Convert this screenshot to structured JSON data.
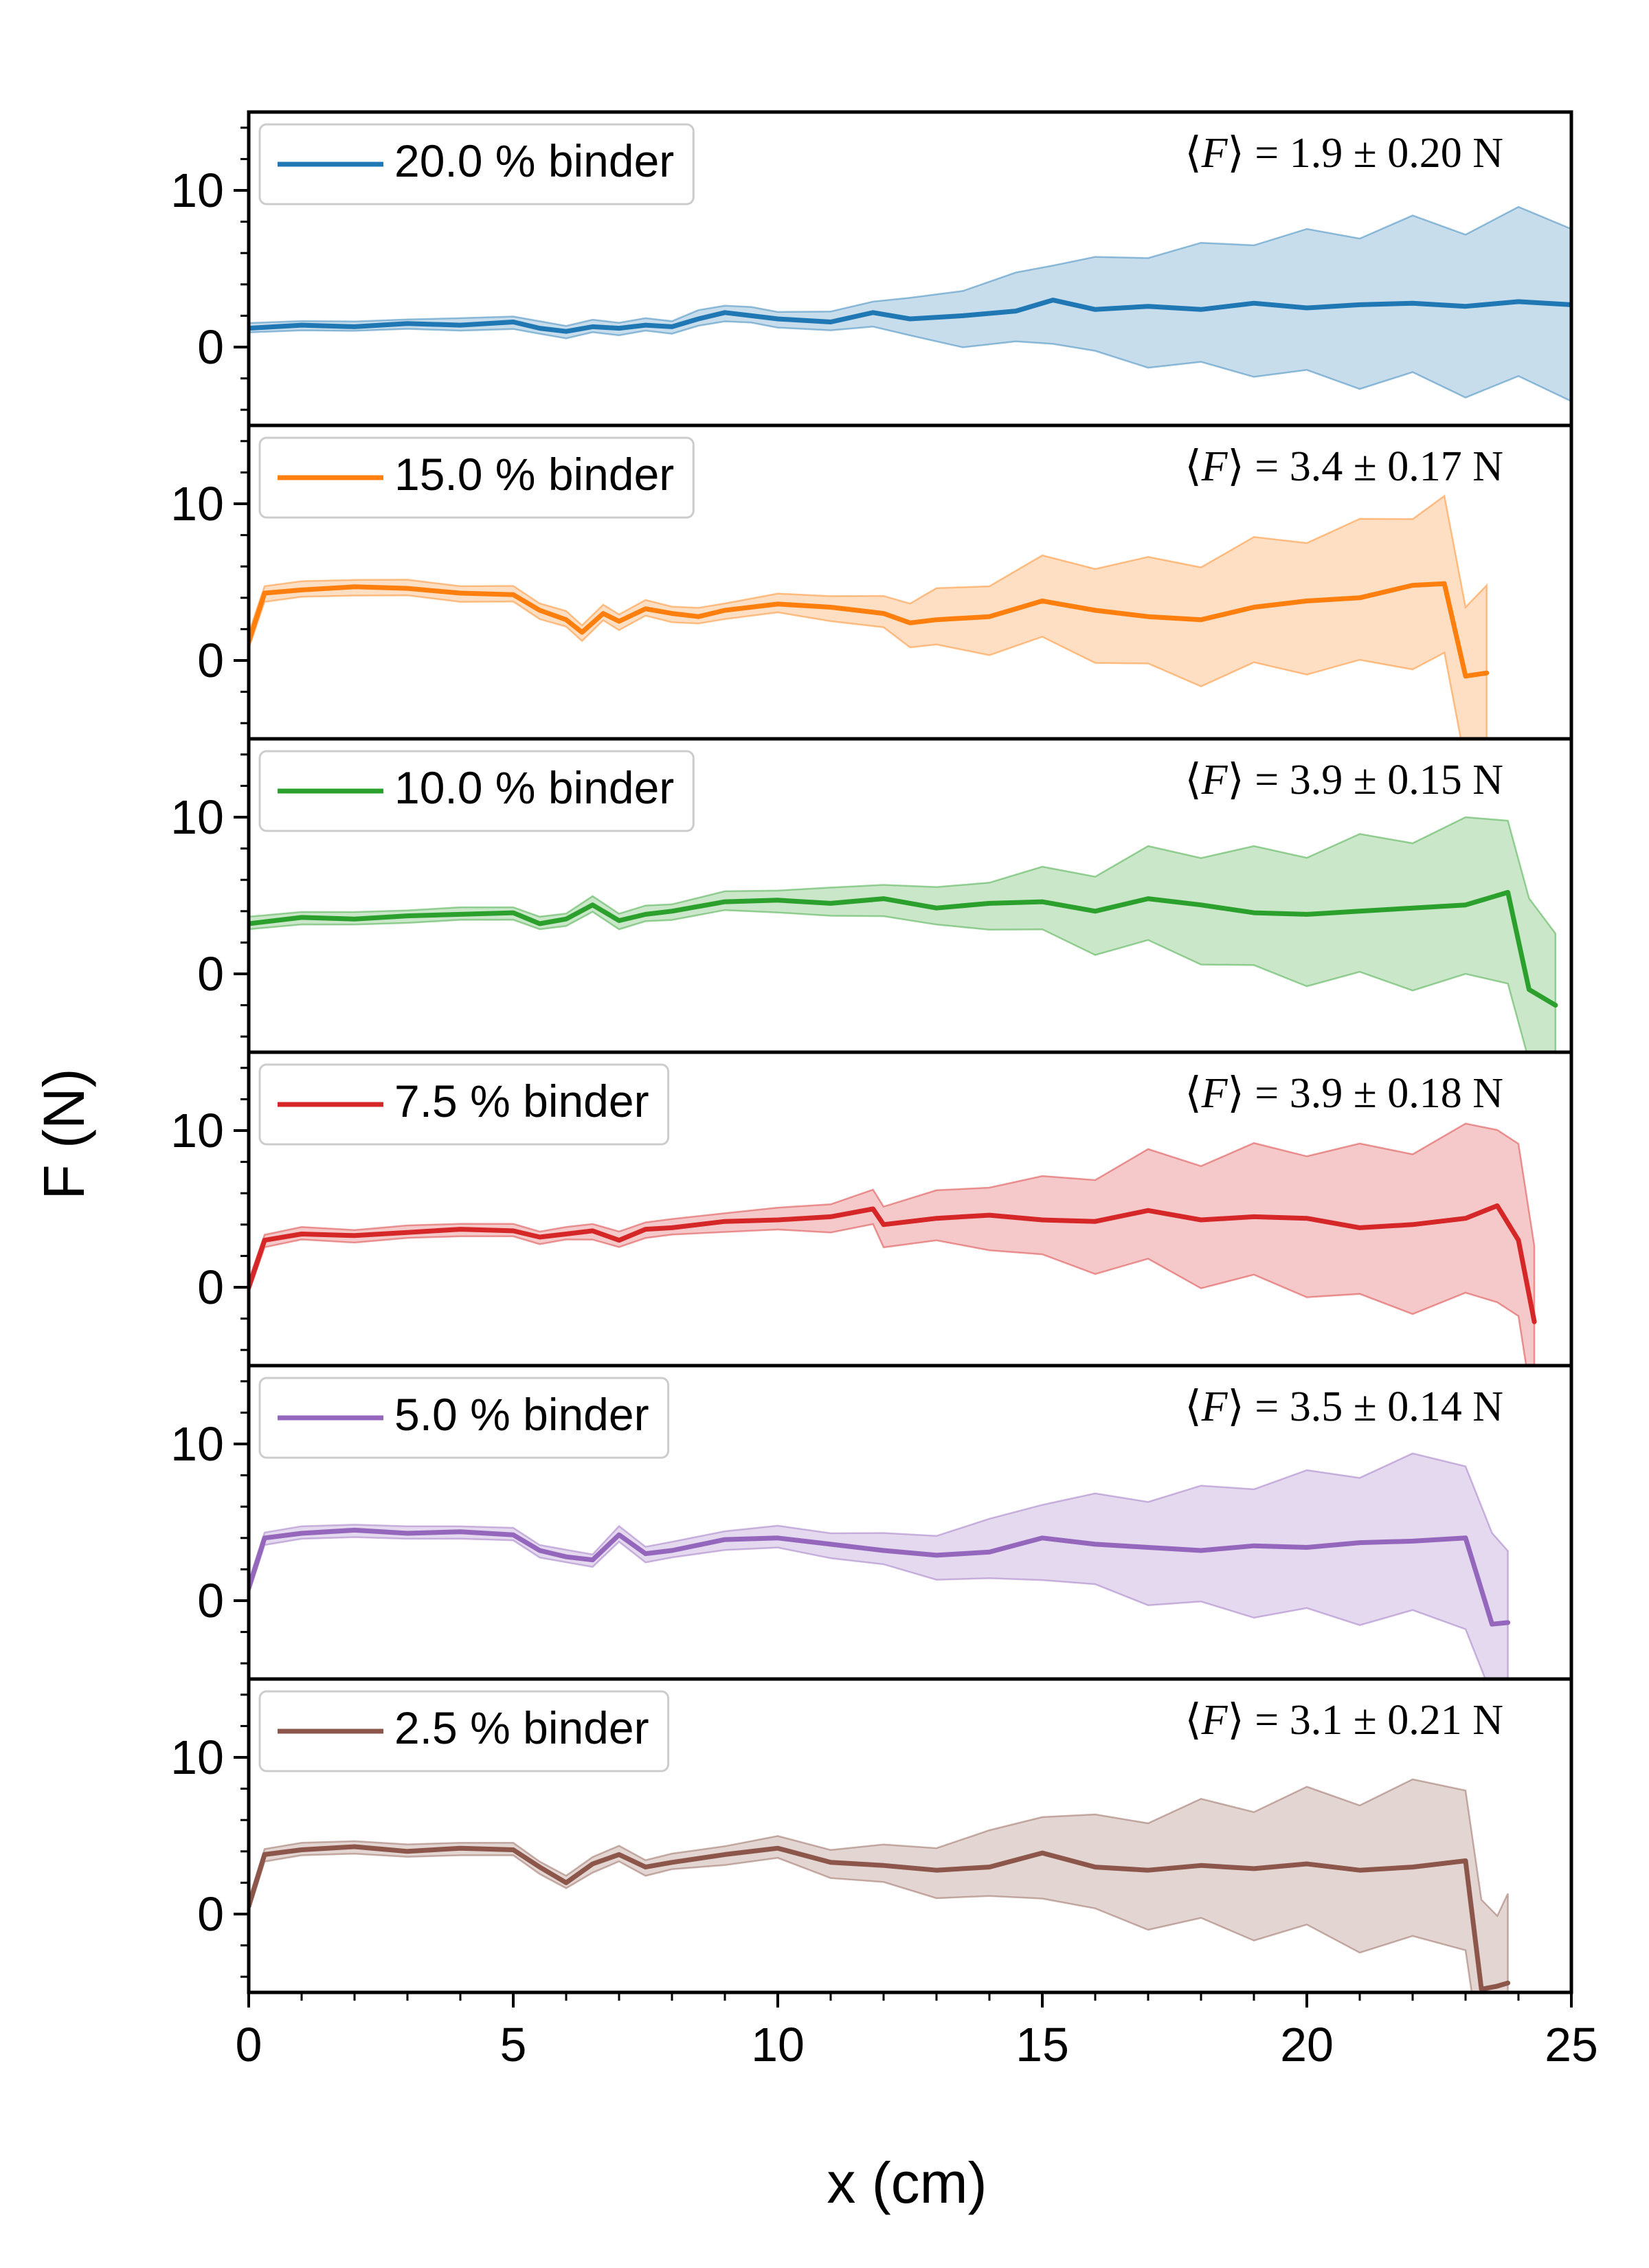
{
  "chart_data": {
    "type": "line",
    "xlabel": "x (cm)",
    "ylabel": "F (N)",
    "xlim": [
      0,
      25
    ],
    "ylim": [
      -5,
      15
    ],
    "x_ticks": [
      0,
      5,
      10,
      15,
      20,
      25
    ],
    "y_ticks": [
      0,
      10
    ],
    "grid": false,
    "legend_position": "top-left",
    "series": [
      {
        "name": "20.0 % binder",
        "color": "#1f77b4",
        "annotation": {
          "prefix": "⟨",
          "symbol": "F",
          "middle": "⟩ = ",
          "value": "1.9 ± 0.20 N"
        },
        "x": [
          0,
          1,
          2,
          3,
          4,
          5,
          5.5,
          6,
          6.5,
          7,
          7.5,
          8,
          8.5,
          9,
          9.5,
          10,
          11,
          11.8,
          12.5,
          13.5,
          14.5,
          15.2,
          16,
          17,
          18,
          19,
          20,
          21,
          22,
          23,
          24,
          25
        ],
        "y": [
          1.2,
          1.4,
          1.3,
          1.5,
          1.4,
          1.6,
          1.2,
          1.0,
          1.3,
          1.2,
          1.4,
          1.3,
          1.8,
          2.2,
          2.0,
          1.8,
          1.6,
          2.2,
          1.8,
          2.0,
          2.3,
          3.0,
          2.4,
          2.6,
          2.4,
          2.8,
          2.5,
          2.7,
          2.8,
          2.6,
          2.9,
          2.7
        ],
        "spread": [
          0.3,
          0.3,
          0.3,
          0.3,
          0.4,
          0.4,
          0.4,
          0.4,
          0.4,
          0.4,
          0.4,
          0.4,
          0.5,
          0.5,
          0.5,
          0.5,
          0.6,
          0.8,
          1.2,
          1.8,
          2.2,
          2.5,
          3.0,
          3.5,
          3.8,
          4.2,
          4.5,
          4.8,
          5.0,
          5.2,
          5.4,
          5.5
        ]
      },
      {
        "name": "15.0 % binder",
        "color": "#ff7f0e",
        "annotation": {
          "prefix": "⟨",
          "symbol": "F",
          "middle": "⟩ = ",
          "value": "3.4 ± 0.17 N"
        },
        "x": [
          0,
          0.3,
          1,
          2,
          3,
          4,
          5,
          5.5,
          6,
          6.3,
          6.7,
          7,
          7.5,
          8,
          8.5,
          9,
          10,
          11,
          12,
          12.5,
          13,
          14,
          15,
          16,
          17,
          18,
          19,
          20,
          21,
          22,
          22.6,
          23,
          23.4
        ],
        "y": [
          1.2,
          4.3,
          4.5,
          4.7,
          4.6,
          4.3,
          4.2,
          3.2,
          2.6,
          1.8,
          3.0,
          2.5,
          3.3,
          3.0,
          2.8,
          3.2,
          3.6,
          3.4,
          3.0,
          2.4,
          2.6,
          2.8,
          3.8,
          3.2,
          2.8,
          2.6,
          3.4,
          3.8,
          4.0,
          4.8,
          4.9,
          -1.0,
          -0.8
        ],
        "spread": [
          0.5,
          0.5,
          0.5,
          0.5,
          0.5,
          0.5,
          0.5,
          0.5,
          0.5,
          0.5,
          0.5,
          0.5,
          0.5,
          0.5,
          0.5,
          0.5,
          0.6,
          0.8,
          1.0,
          1.4,
          1.8,
          2.2,
          2.6,
          3.0,
          3.4,
          3.8,
          4.0,
          4.2,
          4.5,
          4.8,
          5.0,
          5.0,
          5.0
        ]
      },
      {
        "name": "10.0 % binder",
        "color": "#2ca02c",
        "annotation": {
          "prefix": "⟨",
          "symbol": "F",
          "middle": "⟩ = ",
          "value": "3.9 ± 0.15 N"
        },
        "x": [
          0,
          1,
          2,
          3,
          4,
          5,
          5.5,
          6,
          6.5,
          7,
          7.5,
          8,
          9,
          10,
          11,
          12,
          13,
          14,
          15,
          16,
          17,
          18,
          19,
          20,
          21,
          22,
          23,
          23.8,
          24.2,
          24.7
        ],
        "y": [
          3.2,
          3.6,
          3.5,
          3.7,
          3.8,
          3.9,
          3.2,
          3.5,
          4.4,
          3.4,
          3.8,
          4.0,
          4.6,
          4.7,
          4.5,
          4.8,
          4.2,
          4.5,
          4.6,
          4.0,
          4.8,
          4.4,
          3.9,
          3.8,
          4.0,
          4.2,
          4.4,
          5.2,
          -1.0,
          -2.0
        ],
        "spread": [
          0.4,
          0.4,
          0.4,
          0.4,
          0.4,
          0.4,
          0.4,
          0.4,
          0.5,
          0.5,
          0.5,
          0.5,
          0.6,
          0.7,
          0.9,
          1.0,
          1.2,
          1.5,
          2.0,
          2.5,
          3.0,
          3.4,
          3.8,
          4.1,
          4.4,
          4.7,
          5.0,
          5.2,
          5.2,
          5.2
        ]
      },
      {
        "name": "7.5 % binder",
        "color": "#d62728",
        "annotation": {
          "prefix": "⟨",
          "symbol": "F",
          "middle": "⟩ = ",
          "value": "3.9 ± 0.18 N"
        },
        "x": [
          0,
          0.3,
          1,
          2,
          3,
          4,
          5,
          5.5,
          6,
          6.5,
          7,
          7.5,
          8,
          9,
          10,
          11,
          11.8,
          12,
          13,
          14,
          15,
          16,
          17,
          18,
          19,
          20,
          21,
          22,
          23,
          23.6,
          24,
          24.3
        ],
        "y": [
          0.0,
          3.0,
          3.4,
          3.3,
          3.5,
          3.7,
          3.6,
          3.2,
          3.4,
          3.6,
          3.0,
          3.7,
          3.8,
          4.2,
          4.3,
          4.5,
          5.0,
          4.0,
          4.4,
          4.6,
          4.3,
          4.2,
          4.9,
          4.3,
          4.5,
          4.4,
          3.8,
          4.0,
          4.4,
          5.2,
          3.0,
          -2.2
        ],
        "spread": [
          0.4,
          0.4,
          0.4,
          0.4,
          0.4,
          0.4,
          0.4,
          0.4,
          0.4,
          0.5,
          0.5,
          0.5,
          0.5,
          0.6,
          0.7,
          0.9,
          1.1,
          1.3,
          1.6,
          2.0,
          2.5,
          3.0,
          3.5,
          3.9,
          4.2,
          4.5,
          4.8,
          5.1,
          5.4,
          5.5,
          5.5,
          5.5
        ]
      },
      {
        "name": "5.0 % binder",
        "color": "#9467bd",
        "annotation": {
          "prefix": "⟨",
          "symbol": "F",
          "middle": "⟩ = ",
          "value": "3.5 ± 0.14 N"
        },
        "x": [
          0,
          0.3,
          1,
          2,
          3,
          4,
          5,
          5.5,
          6,
          6.5,
          7,
          7.5,
          8,
          9,
          10,
          11,
          12,
          13,
          14,
          15,
          16,
          17,
          18,
          19,
          20,
          21,
          22,
          23,
          23.5,
          23.8
        ],
        "y": [
          0.8,
          4.0,
          4.3,
          4.5,
          4.3,
          4.4,
          4.2,
          3.2,
          2.8,
          2.6,
          4.2,
          3.0,
          3.2,
          3.9,
          4.0,
          3.6,
          3.2,
          2.9,
          3.1,
          4.0,
          3.6,
          3.4,
          3.2,
          3.5,
          3.4,
          3.7,
          3.8,
          4.0,
          -1.5,
          -1.4
        ],
        "spread": [
          0.4,
          0.4,
          0.4,
          0.4,
          0.4,
          0.4,
          0.4,
          0.4,
          0.4,
          0.4,
          0.5,
          0.5,
          0.5,
          0.6,
          0.7,
          0.8,
          1.0,
          1.4,
          1.9,
          2.4,
          2.9,
          3.3,
          3.7,
          4.1,
          4.4,
          4.7,
          5.0,
          5.2,
          5.2,
          5.2
        ]
      },
      {
        "name": "2.5 % binder",
        "color": "#8c564b",
        "annotation": {
          "prefix": "⟨",
          "symbol": "F",
          "middle": "⟩ = ",
          "value": "3.1 ± 0.21 N"
        },
        "x": [
          0,
          0.3,
          1,
          2,
          3,
          4,
          5,
          5.5,
          6,
          6.5,
          7,
          7.5,
          8,
          9,
          10,
          11,
          12,
          13,
          14,
          15,
          16,
          17,
          18,
          19,
          20,
          21,
          22,
          23,
          23.3,
          23.6,
          23.8
        ],
        "y": [
          0.5,
          3.8,
          4.1,
          4.3,
          4.0,
          4.2,
          4.1,
          3.0,
          2.0,
          3.2,
          3.8,
          3.0,
          3.3,
          3.8,
          4.2,
          3.3,
          3.1,
          2.8,
          3.0,
          3.9,
          3.0,
          2.8,
          3.1,
          2.9,
          3.2,
          2.8,
          3.0,
          3.4,
          -4.8,
          -4.6,
          -4.4
        ],
        "spread": [
          0.4,
          0.4,
          0.4,
          0.4,
          0.4,
          0.4,
          0.4,
          0.4,
          0.4,
          0.5,
          0.5,
          0.5,
          0.5,
          0.6,
          0.7,
          0.9,
          1.2,
          1.6,
          2.1,
          2.6,
          3.0,
          3.4,
          3.8,
          4.1,
          4.4,
          4.7,
          5.0,
          5.1,
          5.1,
          5.1,
          5.1
        ]
      }
    ]
  }
}
